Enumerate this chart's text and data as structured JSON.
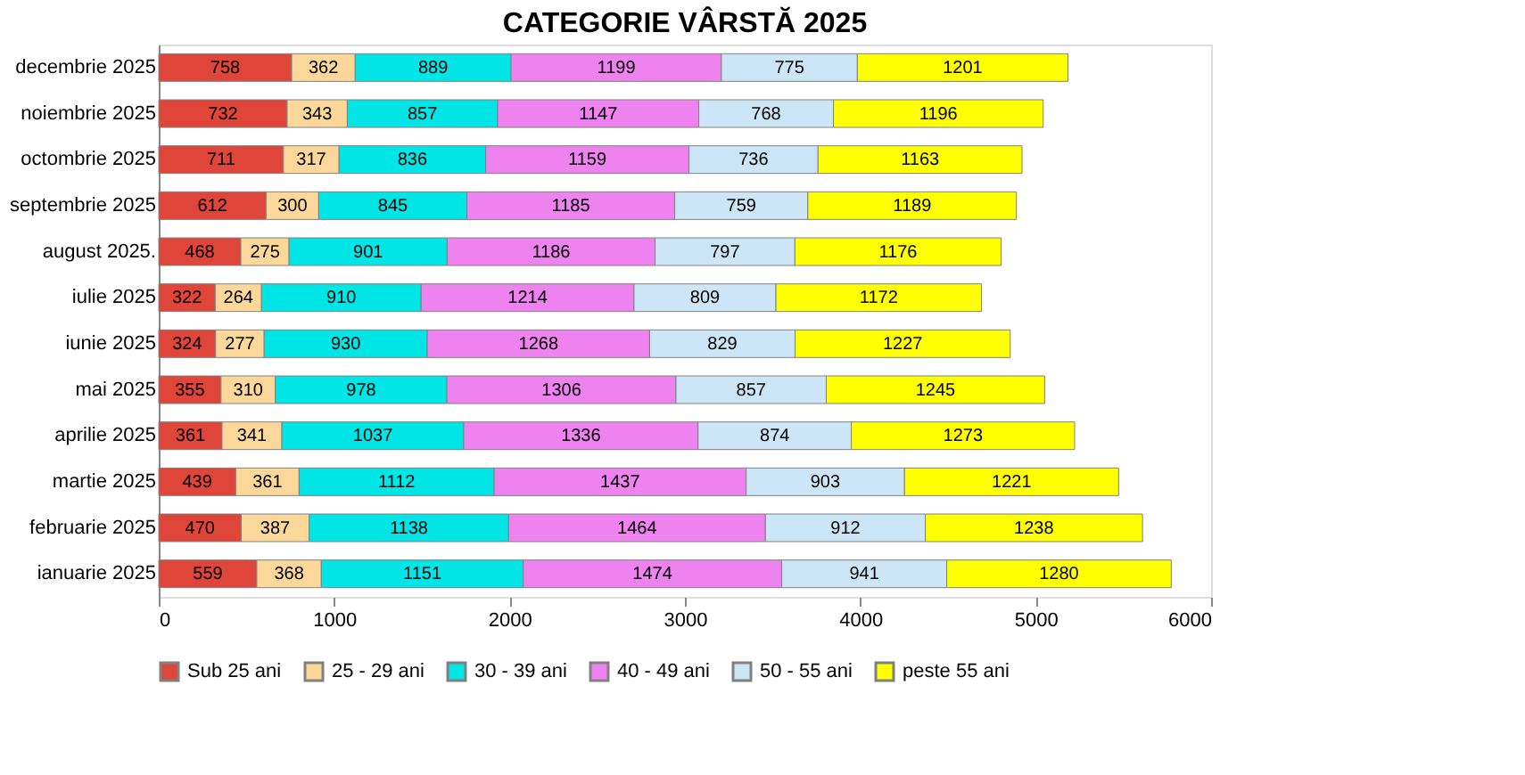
{
  "chart_data": {
    "type": "bar",
    "title": "CATEGORIE VÂRSTĂ 2025",
    "orientation": "horizontal",
    "stacked": true,
    "data_labels": true,
    "grid": false,
    "legend": "bottom",
    "categories": [
      "decembrie 2025",
      "noiembrie 2025",
      "octombrie 2025",
      "septembrie 2025",
      "august 2025.",
      "iulie 2025",
      "iunie 2025",
      "mai 2025",
      "aprilie 2025",
      "martie 2025",
      "februarie 2025",
      "ianuarie 2025"
    ],
    "xlim": [
      0,
      6000
    ],
    "xticks": [
      0,
      1000,
      2000,
      3000,
      4000,
      5000,
      6000
    ],
    "series": [
      {
        "name": "Sub 25 ani",
        "color": "#e0453a",
        "values": [
          758,
          732,
          711,
          612,
          468,
          322,
          324,
          355,
          361,
          439,
          470,
          559
        ]
      },
      {
        "name": "25 - 29 ani",
        "color": "#fbd89a",
        "values": [
          362,
          343,
          317,
          300,
          275,
          264,
          277,
          310,
          341,
          361,
          387,
          368
        ]
      },
      {
        "name": "30 - 39 ani",
        "color": "#00e5e5",
        "values": [
          889,
          857,
          836,
          845,
          901,
          910,
          930,
          978,
          1037,
          1112,
          1138,
          1151
        ]
      },
      {
        "name": "40 - 49 ani",
        "color": "#ee82ee",
        "values": [
          1199,
          1147,
          1159,
          1185,
          1186,
          1214,
          1268,
          1306,
          1336,
          1437,
          1464,
          1474
        ]
      },
      {
        "name": "50 - 55 ani",
        "color": "#cde6f7",
        "values": [
          775,
          768,
          736,
          759,
          797,
          809,
          829,
          857,
          874,
          903,
          912,
          941
        ]
      },
      {
        "name": "peste 55 ani",
        "color": "#ffff00",
        "values": [
          1201,
          1196,
          1163,
          1189,
          1176,
          1172,
          1227,
          1245,
          1273,
          1221,
          1238,
          1280
        ]
      }
    ]
  }
}
